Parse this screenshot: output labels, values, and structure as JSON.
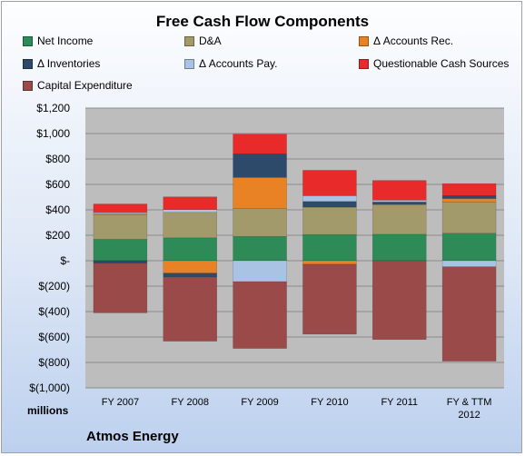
{
  "chart_data": {
    "type": "bar",
    "stacked": true,
    "title": "Free Cash Flow Components",
    "ylabel": "millions",
    "company": "Atmos Energy",
    "ylim": [
      -1000,
      1200
    ],
    "yticks": [
      {
        "value": 1200,
        "label": "$1,200"
      },
      {
        "value": 1000,
        "label": "$1,000"
      },
      {
        "value": 800,
        "label": "$800"
      },
      {
        "value": 600,
        "label": "$600"
      },
      {
        "value": 400,
        "label": "$400"
      },
      {
        "value": 200,
        "label": "$200"
      },
      {
        "value": 0,
        "label": "$-"
      },
      {
        "value": -200,
        "label": "$(200)"
      },
      {
        "value": -400,
        "label": "$(400)"
      },
      {
        "value": -600,
        "label": "$(600)"
      },
      {
        "value": -800,
        "label": "$(800)"
      },
      {
        "value": -1000,
        "label": "$(1,000)"
      }
    ],
    "categories": [
      "FY 2007",
      "FY 2008",
      "FY 2009",
      "FY 2010",
      "FY 2011",
      "FY & TTM 2012"
    ],
    "category_lines": [
      [
        "FY 2007"
      ],
      [
        "FY 2008"
      ],
      [
        "FY 2009"
      ],
      [
        "FY 2010"
      ],
      [
        "FY 2011"
      ],
      [
        "FY & TTM",
        "2012"
      ]
    ],
    "grid": true,
    "legend_position": "top",
    "series": [
      {
        "name": "Net Income",
        "color": "#2e8b57",
        "values": [
          168,
          180,
          191,
          206,
          208,
          216
        ]
      },
      {
        "name": "D&A",
        "color": "#a39a6b",
        "values": [
          195,
          200,
          219,
          215,
          232,
          245
        ]
      },
      {
        "name": "Δ Accounts Rec.",
        "color": "#e88224",
        "values": [
          10,
          -98,
          245,
          -28,
          4,
          28
        ]
      },
      {
        "name": "Δ Inventories",
        "color": "#2e4a6b",
        "values": [
          -18,
          -30,
          185,
          45,
          18,
          22
        ]
      },
      {
        "name": "Δ Accounts Pay.",
        "color": "#a8c3e3",
        "values": [
          8,
          22,
          -165,
          45,
          14,
          -48
        ]
      },
      {
        "name": "Questionable Cash Sources",
        "color": "#e82a2a",
        "values": [
          65,
          100,
          155,
          200,
          155,
          95
        ]
      },
      {
        "name": "Capital Expenditure",
        "color": "#9b4a4a",
        "values": [
          -392,
          -505,
          -525,
          -550,
          -620,
          -742
        ]
      }
    ]
  }
}
